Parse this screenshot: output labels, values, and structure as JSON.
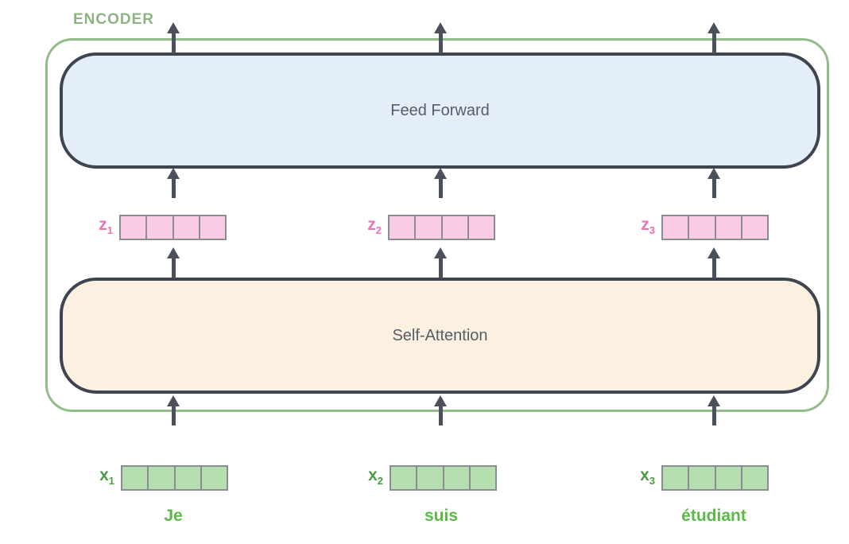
{
  "diagram": {
    "encoder": {
      "label": "ENCODER"
    },
    "layers": {
      "feed_forward": "Feed Forward",
      "self_attention": "Self-Attention"
    },
    "vectors": {
      "cells_per_vector": 4,
      "z": [
        {
          "base": "z",
          "sub": "1"
        },
        {
          "base": "z",
          "sub": "2"
        },
        {
          "base": "z",
          "sub": "3"
        }
      ],
      "x": [
        {
          "base": "x",
          "sub": "1"
        },
        {
          "base": "x",
          "sub": "2"
        },
        {
          "base": "x",
          "sub": "3"
        }
      ]
    },
    "words": [
      "Je",
      "suis",
      "étudiant"
    ],
    "colors": {
      "encoder_border": "#94bb8a",
      "encoder_label": "#8db482",
      "feed_forward_fill": "#e4eefa",
      "self_attention_fill": "#fcf0e0",
      "block_border": "#3e4551",
      "block_text": "#575d68",
      "arrow": "#4a515c",
      "z_vector_fill": "#f9cbe5",
      "z_label": "#f06fb5",
      "x_vector_fill": "#b5dfae",
      "x_label": "#4d9b44",
      "cell_border": "#8a8d94",
      "word_text": "#5cb847"
    }
  }
}
